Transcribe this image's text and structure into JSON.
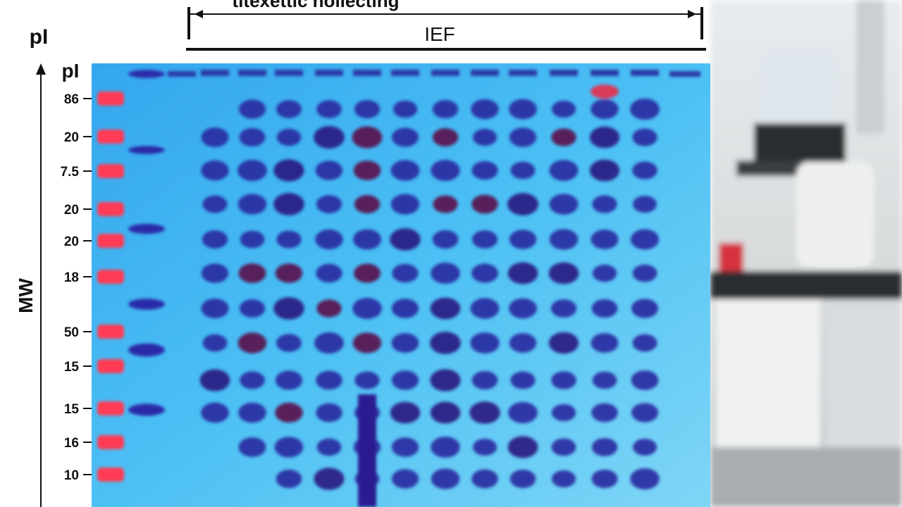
{
  "header": {
    "caption": "titexettic nollecting",
    "bracket_label": "IEF"
  },
  "axis": {
    "top_label": "pI",
    "arrow_label": "pI",
    "side_label": "MW",
    "tick_labels": [
      "86",
      "20",
      "7.5",
      "20",
      "20",
      "18",
      "50",
      "15",
      "15",
      "16",
      "10"
    ]
  }
}
